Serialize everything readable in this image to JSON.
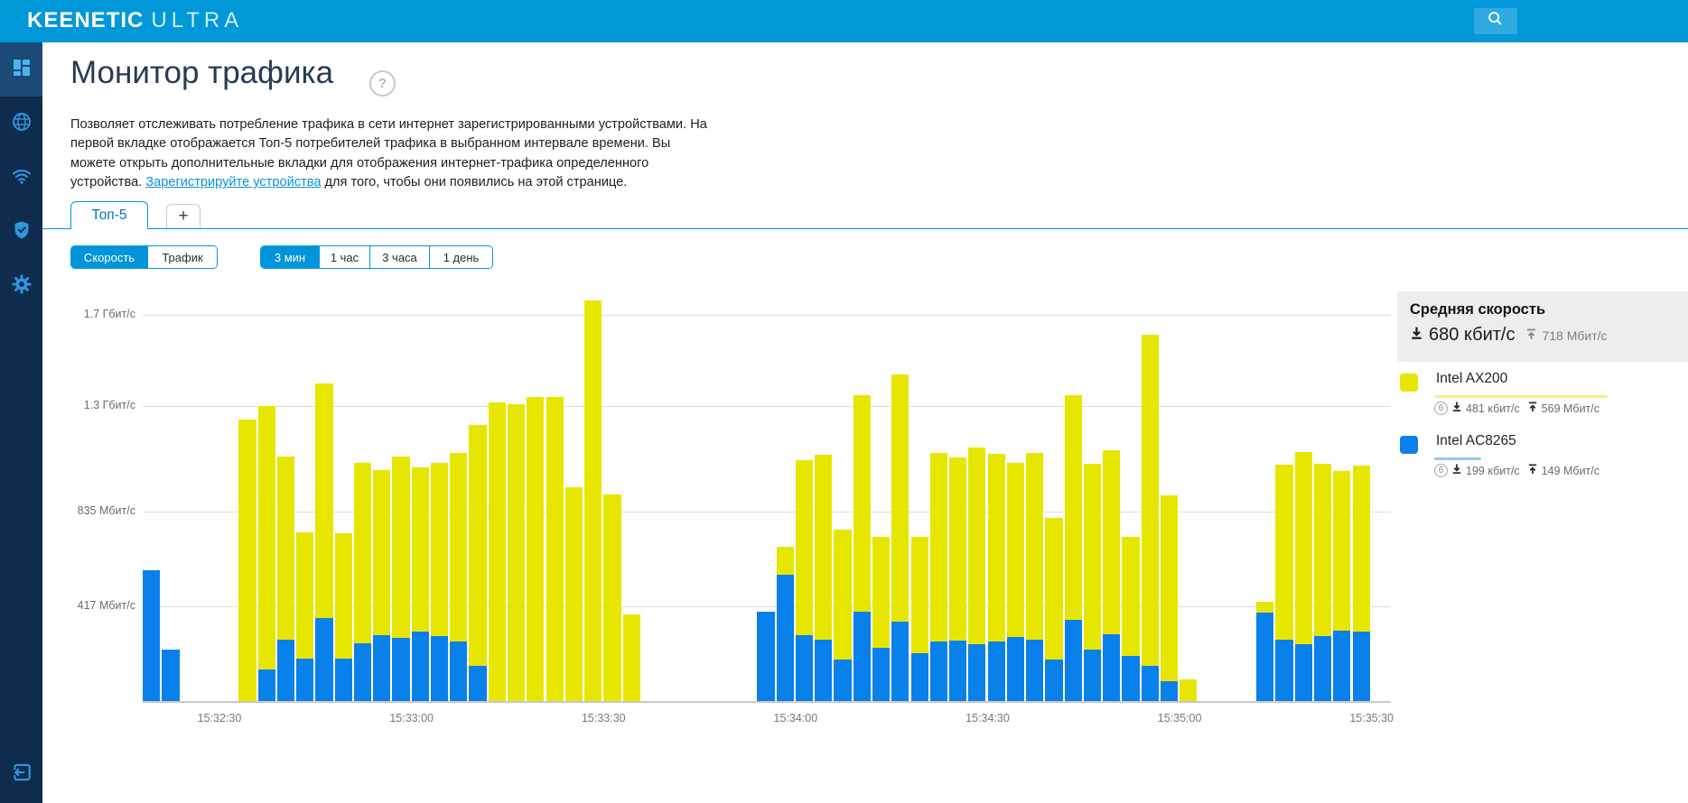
{
  "header": {
    "brand_bold": "KEENETIC",
    "brand_light": "ULTRA"
  },
  "sidebar": {
    "items": [
      {
        "icon": "dashboard-icon",
        "active": true
      },
      {
        "icon": "internet-globe-icon",
        "active": false
      },
      {
        "icon": "wifi-icon",
        "active": false
      },
      {
        "icon": "security-shield-icon",
        "active": false
      },
      {
        "icon": "settings-gear-icon",
        "active": false
      }
    ],
    "logout_icon": "logout-icon"
  },
  "page": {
    "title": "Монитор трафика",
    "help_label": "?",
    "description_before_link": "Позволяет отслеживать потребление трафика в сети интернет зарегистрированными устройствами. На первой вкладке отображается Топ-5 потребителей трафика в выбранном интервале времени. Вы можете открыть дополнительные вкладки для отображения интернет-трафика определенного устройства. ",
    "description_link": "Зарегистрируйте устройства",
    "description_after_link": " для того, чтобы они появились на этой странице."
  },
  "tabs": {
    "active_label": "Топ-5",
    "add_label": "+"
  },
  "mode_toggle": {
    "options": [
      "Скорость",
      "Трафик"
    ],
    "active_index": 0
  },
  "interval_toggle": {
    "options": [
      "3 мин",
      "1 час",
      "3 часа",
      "1 день"
    ],
    "active_index": 0
  },
  "chart_data": {
    "type": "bar",
    "stacked": true,
    "slots": 65,
    "seconds_per_slot": 3,
    "units": "Мбит/с",
    "ylim": [
      0,
      1855
    ],
    "grid": true,
    "y_ticks": [
      {
        "value": 417,
        "label": "417 Мбит/с"
      },
      {
        "value": 835,
        "label": "835 Мбит/с"
      },
      {
        "value": 1300,
        "label": "1.3 Гбит/с"
      },
      {
        "value": 1700,
        "label": "1.7 Гбит/с"
      }
    ],
    "x_ticks": [
      {
        "slot": 4,
        "label": "15:32:30"
      },
      {
        "slot": 14,
        "label": "15:33:00"
      },
      {
        "slot": 24,
        "label": "15:33:30"
      },
      {
        "slot": 34,
        "label": "15:34:00"
      },
      {
        "slot": 44,
        "label": "15:34:30"
      },
      {
        "slot": 54,
        "label": "15:35:00"
      },
      {
        "slot": 64,
        "label": "15:35:30"
      }
    ],
    "series": [
      {
        "name": "Intel AC8265",
        "color": "#0a80ea",
        "stack_position": "bottom",
        "values": [
          578,
          225,
          null,
          null,
          null,
          0,
          140,
          271,
          186,
          365,
          186,
          256,
          291,
          279,
          306,
          287,
          264,
          155,
          0,
          0,
          0,
          0,
          0,
          0,
          0,
          0,
          null,
          null,
          null,
          null,
          null,
          null,
          392,
          556,
          290,
          272,
          183,
          392,
          235,
          350,
          212,
          262,
          268,
          249,
          264,
          281,
          272,
          183,
          356,
          225,
          294,
          199,
          157,
          89,
          0,
          null,
          null,
          null,
          388,
          272,
          252,
          287,
          310,
          306,
          null
        ]
      },
      {
        "name": "Intel AX200",
        "color": "#e7e600",
        "stack_position": "top",
        "values": [
          0,
          0,
          null,
          null,
          null,
          1238,
          1160,
          807,
          559,
          1032,
          555,
          795,
          725,
          799,
          722,
          760,
          830,
          1059,
          1315,
          1307,
          1338,
          1338,
          943,
          1765,
          908,
          380,
          null,
          null,
          null,
          null,
          null,
          null,
          0,
          124,
          772,
          811,
          573,
          953,
          487,
          1089,
          510,
          830,
          805,
          869,
          824,
          768,
          820,
          625,
          989,
          819,
          811,
          523,
          1455,
          816,
          97,
          null,
          null,
          null,
          50,
          767,
          846,
          759,
          702,
          733,
          null
        ]
      }
    ]
  },
  "legend": {
    "summary_title": "Средняя скорость",
    "download_value": "680 кбит/с",
    "upload_value": "718 Мбит/с",
    "devices": [
      {
        "name": "Intel AX200",
        "color": "#e7e600",
        "underline_color": "#f2ee8d",
        "underline_width": 192,
        "band_badge": "6",
        "download": "481 кбит/с",
        "upload": "569 Мбит/с"
      },
      {
        "name": "Intel AC8265",
        "color": "#0a80ea",
        "underline_color": "#96c8ed",
        "underline_width": 52,
        "band_badge": "6",
        "download": "199 кбит/с",
        "upload": "149 Мбит/с"
      }
    ]
  }
}
